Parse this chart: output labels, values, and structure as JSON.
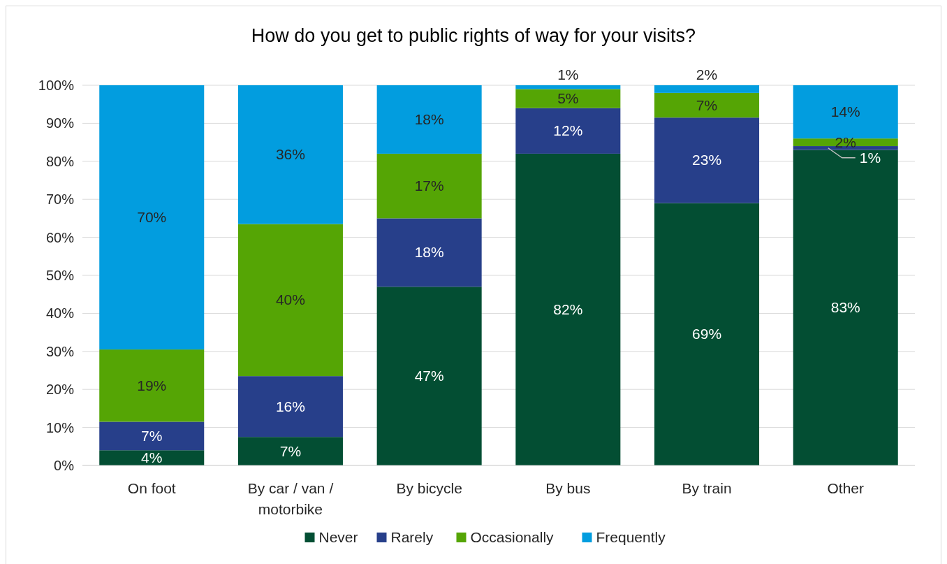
{
  "chart_data": {
    "type": "bar",
    "title": "How do you get to public rights of way for your visits?",
    "categories": [
      "On foot",
      "By car / van / motorbike",
      "By bicycle",
      "By bus",
      "By train",
      "Other"
    ],
    "series": [
      {
        "name": "Never",
        "color": "#034e33",
        "values": [
          4,
          7.5,
          47,
          82,
          69,
          83
        ],
        "value_labels": [
          "4%",
          "7%",
          "47%",
          "82%",
          "69%",
          "83%"
        ]
      },
      {
        "name": "Rarely",
        "color": "#273f8a",
        "values": [
          7.5,
          16,
          18,
          12,
          22.5,
          1
        ],
        "value_labels": [
          "7%",
          "16%",
          "18%",
          "12%",
          "23%",
          "1%"
        ]
      },
      {
        "name": "Occasionally",
        "color": "#55a505",
        "values": [
          19,
          40,
          17,
          5,
          6.5,
          2
        ],
        "value_labels": [
          "19%",
          "40%",
          "17%",
          "5%",
          "7%",
          "2%"
        ]
      },
      {
        "name": "Frequently",
        "color": "#029ddf",
        "values": [
          69.5,
          36.5,
          18,
          1,
          2,
          14
        ],
        "value_labels": [
          "70%",
          "36%",
          "18%",
          "1%",
          "2%",
          "14%"
        ]
      }
    ],
    "stacked": true,
    "ylim": [
      0,
      100
    ],
    "yticks": [
      {
        "value": 0,
        "label": "0%"
      },
      {
        "value": 10,
        "label": "10%"
      },
      {
        "value": 20,
        "label": "20%"
      },
      {
        "value": 30,
        "label": "30%"
      },
      {
        "value": 40,
        "label": "40%"
      },
      {
        "value": 50,
        "label": "50%"
      },
      {
        "value": 60,
        "label": "60%"
      },
      {
        "value": 70,
        "label": "70%"
      },
      {
        "value": 80,
        "label": "80%"
      },
      {
        "value": 90,
        "label": "90%"
      },
      {
        "value": 100,
        "label": "100%"
      }
    ],
    "grid": "y",
    "legend": "bottom"
  }
}
